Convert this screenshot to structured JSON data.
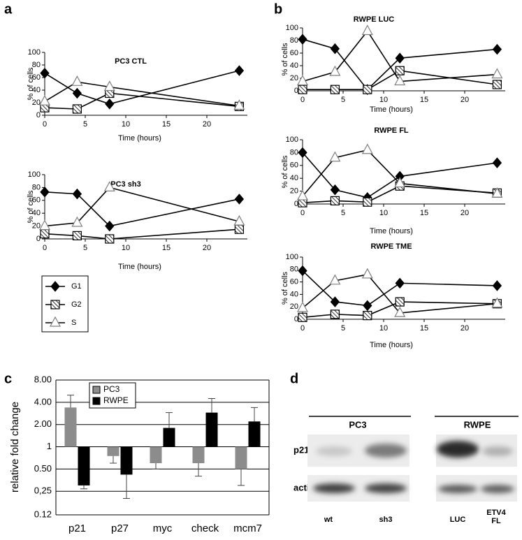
{
  "panels": [
    "a",
    "b",
    "c",
    "d"
  ],
  "chart_data": [
    {
      "type": "line",
      "title": "PC3 CTL",
      "x_label": "Time (hours)",
      "y_label": "% of cells",
      "x": [
        0,
        4,
        8,
        24
      ],
      "xlim": [
        0,
        25
      ],
      "xticks": [
        0,
        5,
        10,
        15,
        20
      ],
      "ylim": [
        0,
        100
      ],
      "yticks": [
        0,
        20,
        40,
        60,
        80,
        100
      ],
      "series": [
        {
          "marker": "diamond",
          "color": "#000000",
          "values": [
            67,
            35,
            18,
            71
          ]
        },
        {
          "marker": "hatched-square",
          "color": "#000000",
          "values": [
            12,
            10,
            35,
            14
          ]
        },
        {
          "marker": "triangle",
          "color": "#7f7f7f",
          "values": [
            22,
            53,
            45,
            15
          ]
        }
      ]
    },
    {
      "type": "line",
      "title": "PC3 sh3",
      "x_label": "Time (hours)",
      "y_label": "% of cells",
      "x": [
        0,
        4,
        8,
        24
      ],
      "xlim": [
        0,
        25
      ],
      "xticks": [
        0,
        5,
        10,
        15,
        20
      ],
      "ylim": [
        0,
        100
      ],
      "yticks": [
        0,
        20,
        40,
        60,
        80,
        100
      ],
      "legend": "below",
      "series": [
        {
          "name": "G1",
          "marker": "diamond",
          "color": "#000000",
          "values": [
            73,
            70,
            20,
            62
          ]
        },
        {
          "name": "G2",
          "marker": "hatched-square",
          "color": "#000000",
          "values": [
            8,
            5,
            0,
            15
          ]
        },
        {
          "name": "S",
          "marker": "triangle",
          "color": "#7f7f7f",
          "values": [
            20,
            25,
            80,
            27
          ]
        }
      ]
    },
    {
      "type": "line",
      "title": "RWPE LUC",
      "x_label": "Time (hours)",
      "y_label": "% of cells",
      "x": [
        0,
        4,
        8,
        12,
        24
      ],
      "xlim": [
        0,
        25
      ],
      "xticks": [
        0,
        5,
        10,
        15,
        20
      ],
      "ylim": [
        0,
        100
      ],
      "yticks": [
        0,
        20,
        40,
        60,
        80,
        100
      ],
      "series": [
        {
          "marker": "diamond",
          "color": "#000000",
          "values": [
            82,
            67,
            2,
            52,
            66
          ]
        },
        {
          "marker": "hatched-square",
          "color": "#000000",
          "values": [
            2,
            2,
            2,
            32,
            10
          ]
        },
        {
          "marker": "triangle",
          "color": "#7f7f7f",
          "values": [
            15,
            30,
            95,
            15,
            26
          ]
        }
      ]
    },
    {
      "type": "line",
      "title": "RWPE FL",
      "x_label": "Time (hours)",
      "y_label": "% of cells",
      "x": [
        0,
        4,
        8,
        12,
        24
      ],
      "xlim": [
        0,
        25
      ],
      "xticks": [
        0,
        5,
        10,
        15,
        20
      ],
      "ylim": [
        0,
        100
      ],
      "yticks": [
        0,
        20,
        40,
        60,
        80,
        100
      ],
      "series": [
        {
          "marker": "diamond",
          "color": "#000000",
          "values": [
            80,
            22,
            10,
            43,
            64
          ]
        },
        {
          "marker": "hatched-square",
          "color": "#000000",
          "values": [
            2,
            5,
            3,
            28,
            17
          ]
        },
        {
          "marker": "triangle",
          "color": "#7f7f7f",
          "values": [
            12,
            72,
            84,
            32,
            16
          ]
        }
      ]
    },
    {
      "type": "line",
      "title": "RWPE TME",
      "x_label": "Time (hours)",
      "y_label": "% of cells",
      "x": [
        0,
        4,
        8,
        12,
        24
      ],
      "xlim": [
        0,
        25
      ],
      "xticks": [
        0,
        5,
        10,
        15,
        20
      ],
      "ylim": [
        0,
        100
      ],
      "yticks": [
        0,
        20,
        40,
        60,
        80,
        100
      ],
      "series": [
        {
          "marker": "diamond",
          "color": "#000000",
          "values": [
            78,
            28,
            22,
            58,
            54
          ]
        },
        {
          "marker": "hatched-square",
          "color": "#000000",
          "values": [
            3,
            8,
            6,
            28,
            25
          ]
        },
        {
          "marker": "triangle",
          "color": "#7f7f7f",
          "values": [
            18,
            62,
            72,
            10,
            25
          ]
        }
      ]
    },
    {
      "type": "bar",
      "y_label": "relative fold change",
      "log_base": 2,
      "grid": true,
      "legend": "top-left",
      "categories": [
        "p21",
        "p27",
        "myc",
        "check",
        "mcm7"
      ],
      "ylim": [
        0.12,
        8
      ],
      "yticks": [
        {
          "value": 8,
          "label": "8.00"
        },
        {
          "value": 4,
          "label": "4.00"
        },
        {
          "value": 2,
          "label": "2.00"
        },
        1,
        {
          "value": 0.5,
          "label": "0.50"
        },
        {
          "value": 0.25,
          "label": "0,25"
        },
        0.12
      ],
      "series": [
        {
          "name": "PC3",
          "color": "#8c8c8c",
          "values": [
            3.4,
            0.75,
            0.6,
            0.6,
            0.5
          ],
          "errors": [
            1.6,
            0.15,
            0.1,
            0.2,
            0.2
          ]
        },
        {
          "name": "RWPE",
          "color": "#000000",
          "values": [
            0.3,
            0.42,
            1.8,
            2.9,
            2.2
          ],
          "errors": [
            0.03,
            0.22,
            1.1,
            1.6,
            1.2
          ]
        }
      ]
    }
  ],
  "blot": {
    "groups": [
      "PC3",
      "RWPE"
    ],
    "rows": [
      "p21",
      "actin"
    ],
    "lanes": [
      "wt",
      "sh3",
      "LUC",
      "ETV4 FL"
    ]
  }
}
